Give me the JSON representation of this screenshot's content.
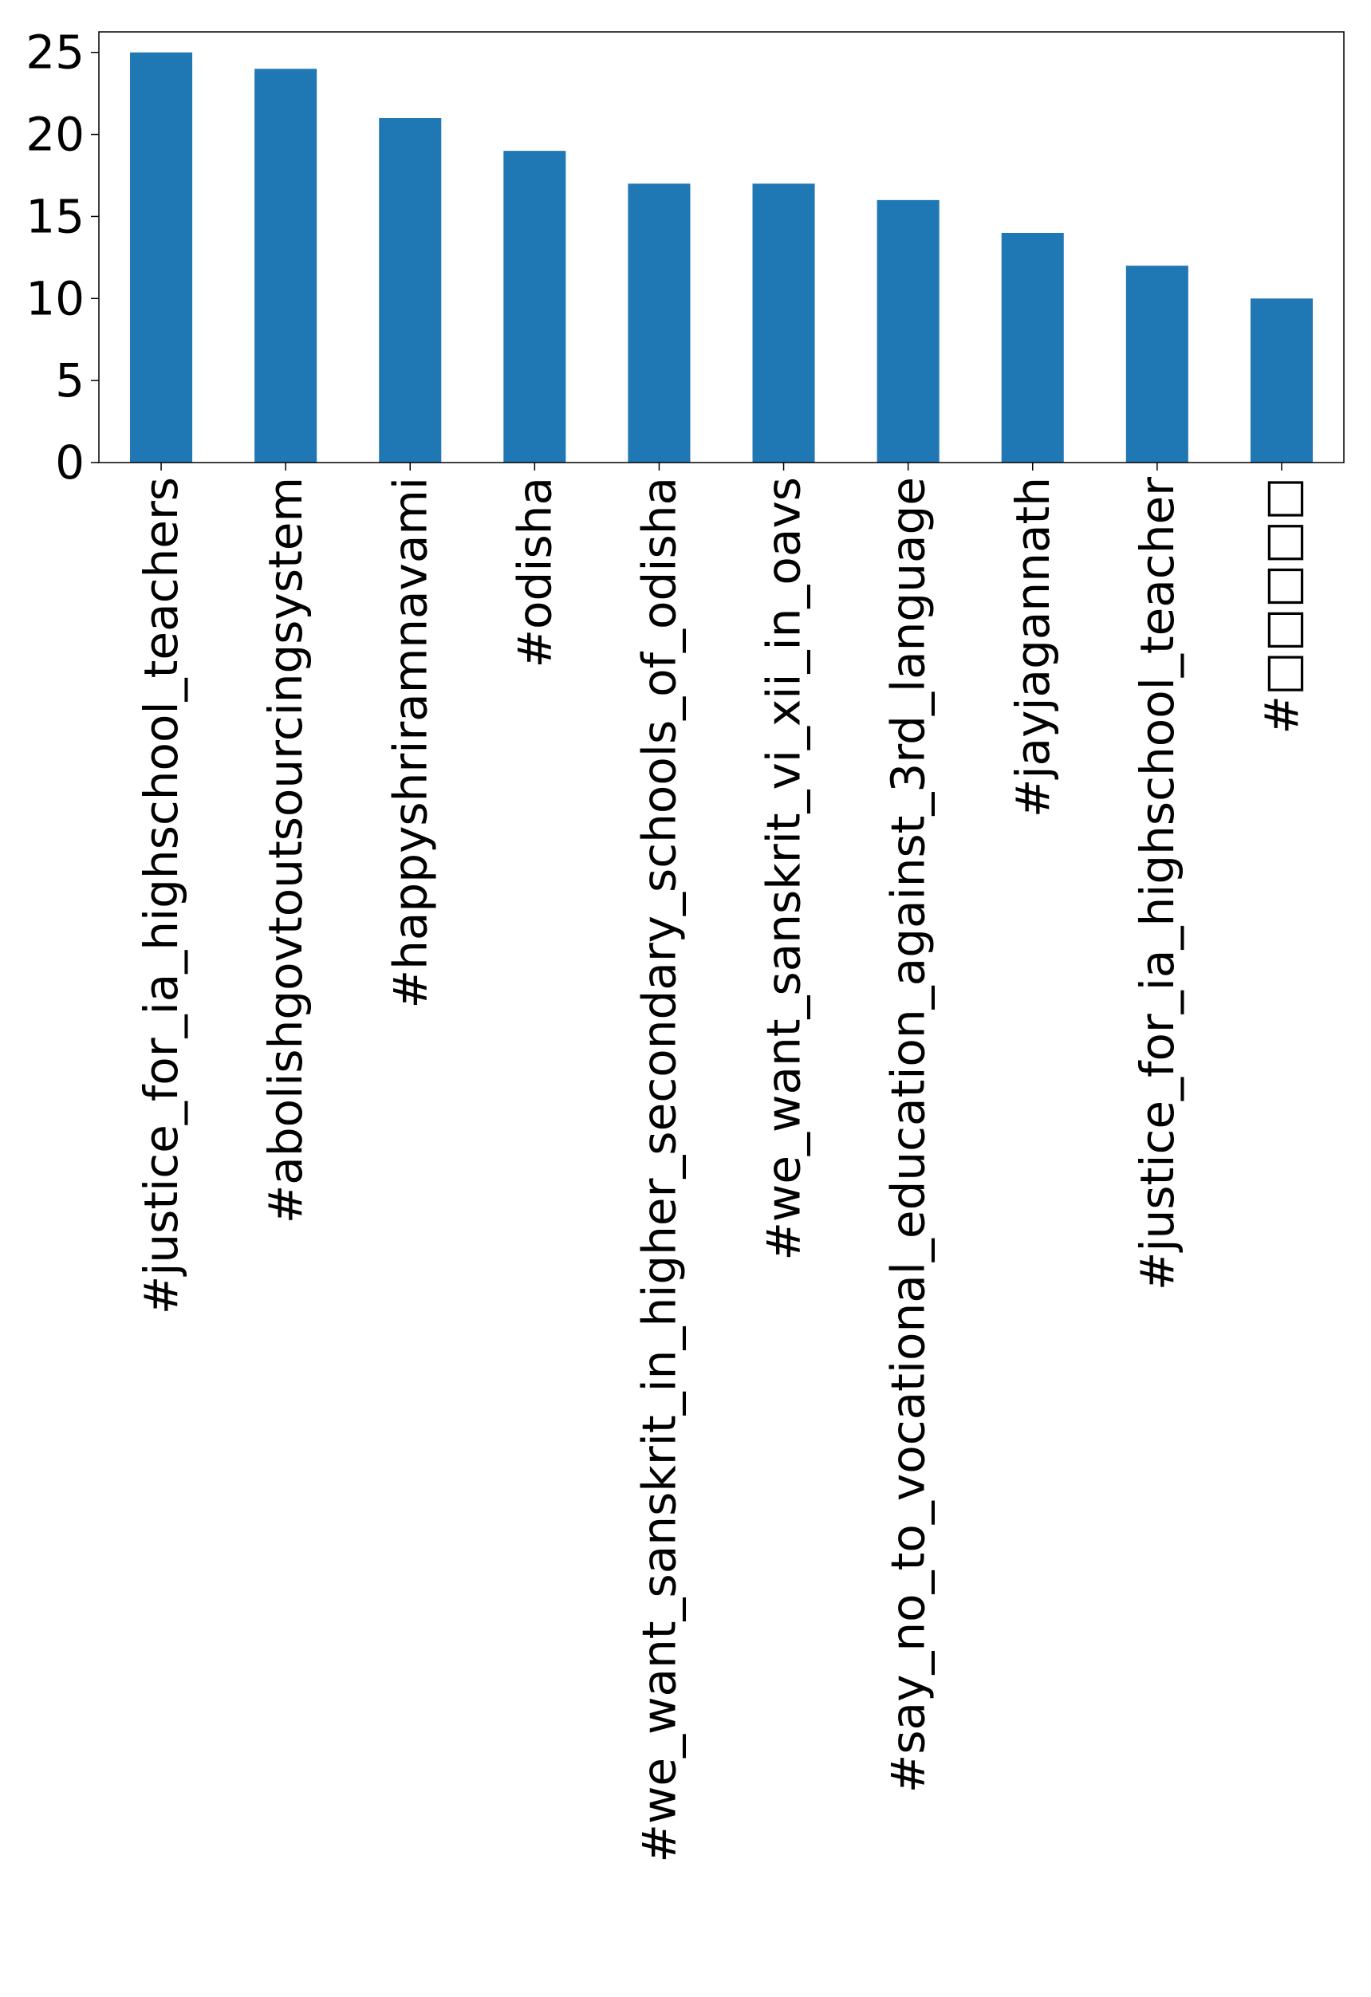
{
  "chart_data": {
    "type": "bar",
    "title": "",
    "xlabel": "",
    "ylabel": "",
    "categories": [
      "#justice_for_ia_highschool_teachers",
      "#abolishgovtoutsourcingsystem",
      "#happyshriramnavami",
      "#odisha",
      "#we_want_sanskrit_in_higher_secondary_schools_of_odisha",
      "#we_want_sanskrit_vi_xii_in_oavs",
      "#say_no_to_vocational_education_against_3rd_language",
      "#jayjagannath",
      "#justice_for_ia_highschool_teacher",
      "#□□□□□"
    ],
    "values": [
      25,
      24,
      21,
      19,
      17,
      17,
      16,
      14,
      12,
      10
    ],
    "ylim": [
      0,
      26.25
    ],
    "yticks": [
      0,
      5,
      10,
      15,
      20,
      25
    ],
    "grid": false,
    "legend": "none",
    "colors": {
      "bar": "#1f77b4",
      "axis": "#000000",
      "background": "#ffffff"
    }
  }
}
